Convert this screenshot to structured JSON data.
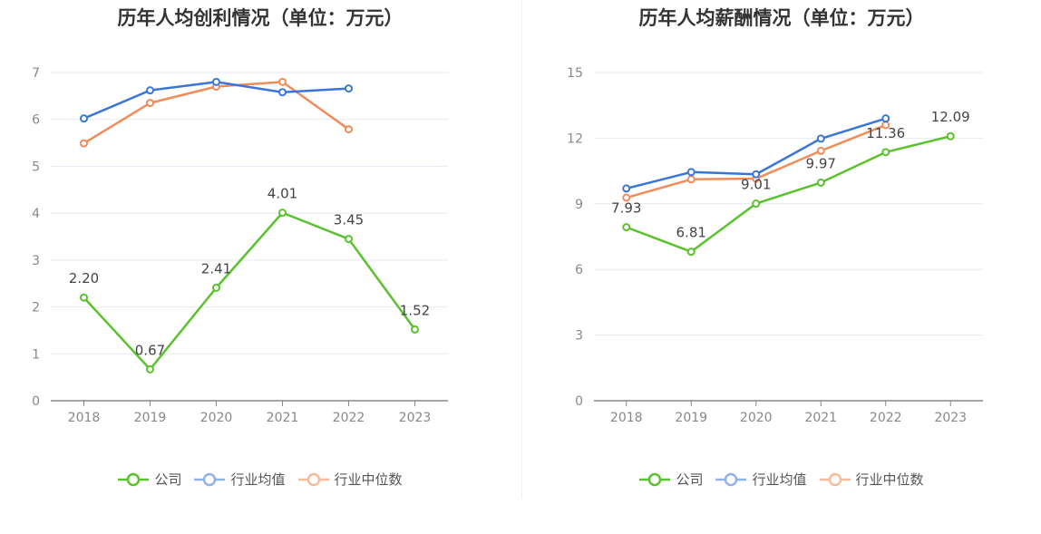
{
  "chart_data": [
    {
      "type": "line",
      "title": "历年人均创利情况（单位：万元）",
      "categories": [
        "2018",
        "2019",
        "2020",
        "2021",
        "2022",
        "2023"
      ],
      "ylim": [
        0,
        7
      ],
      "yticks": [
        "0",
        "1",
        "2",
        "3",
        "4",
        "5",
        "6",
        "7"
      ],
      "grid": true,
      "legend_position": "bottom",
      "series": [
        {
          "name": "公司",
          "color": "#5ac22c",
          "values": [
            2.2,
            0.67,
            2.41,
            4.01,
            3.45,
            1.52
          ],
          "labels": [
            "2.20",
            "0.67",
            "2.41",
            "4.01",
            "3.45",
            "1.52"
          ]
        },
        {
          "name": "行业均值",
          "color": "#3a76d9",
          "values": [
            6.02,
            6.62,
            6.8,
            6.58,
            6.66,
            null
          ]
        },
        {
          "name": "行业中位数",
          "color": "#f08b5a",
          "values": [
            5.49,
            6.35,
            6.7,
            6.8,
            5.79,
            null
          ]
        }
      ]
    },
    {
      "type": "line",
      "title": "历年人均薪酬情况（单位：万元）",
      "categories": [
        "2018",
        "2019",
        "2020",
        "2021",
        "2022",
        "2023"
      ],
      "ylim": [
        0,
        15
      ],
      "yticks": [
        "0",
        "3",
        "6",
        "9",
        "12",
        "15"
      ],
      "grid": true,
      "legend_position": "bottom",
      "series": [
        {
          "name": "公司",
          "color": "#5ac22c",
          "values": [
            7.93,
            6.81,
            9.01,
            9.97,
            11.36,
            12.09
          ],
          "labels": [
            "7.93",
            "6.81",
            "9.01",
            "9.97",
            "11.36",
            "12.09"
          ]
        },
        {
          "name": "行业均值",
          "color": "#3a76d9",
          "values": [
            9.7,
            10.45,
            10.35,
            11.98,
            12.9,
            null
          ]
        },
        {
          "name": "行业中位数",
          "color": "#f08b5a",
          "values": [
            9.28,
            10.12,
            10.15,
            11.42,
            12.6,
            null
          ]
        }
      ]
    }
  ]
}
